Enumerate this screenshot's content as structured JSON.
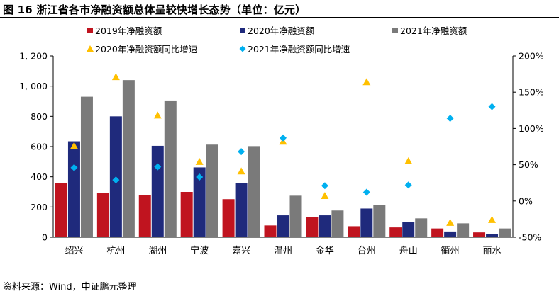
{
  "figure": {
    "title": "图 16 浙江省各市净融资额总体呈较快增长态势（单位：亿元）",
    "source": "资料来源：Wind，中证鹏元整理"
  },
  "chart_data": {
    "type": "bar",
    "categories": [
      "绍兴",
      "杭州",
      "湖州",
      "宁波",
      "嘉兴",
      "温州",
      "金华",
      "台州",
      "舟山",
      "衢州",
      "丽水"
    ],
    "series": [
      {
        "name": "2019年净融资额",
        "kind": "bar",
        "axis": "left",
        "color": "#c0141f",
        "values": [
          360,
          295,
          280,
          300,
          252,
          78,
          135,
          73,
          65,
          58,
          32
        ]
      },
      {
        "name": "2020年净融资额",
        "kind": "bar",
        "axis": "left",
        "color": "#1f2a7c",
        "values": [
          635,
          800,
          605,
          462,
          360,
          145,
          145,
          190,
          102,
          38,
          22
        ]
      },
      {
        "name": "2021年净融资额",
        "kind": "bar",
        "axis": "left",
        "color": "#7a7a7a",
        "values": [
          930,
          1040,
          905,
          613,
          603,
          275,
          177,
          215,
          125,
          92,
          58
        ]
      },
      {
        "name": "2020年净融资额同比增速",
        "kind": "marker",
        "marker": "triangle",
        "axis": "right",
        "color": "#ffc000",
        "values": [
          76,
          171,
          118,
          54,
          41,
          82,
          7,
          164,
          55,
          -30,
          -26
        ]
      },
      {
        "name": "2021年净融资额同比增速",
        "kind": "marker",
        "marker": "diamond",
        "axis": "right",
        "color": "#00b0f0",
        "values": [
          46,
          29,
          47,
          33,
          68,
          87,
          21,
          12,
          22,
          114,
          130
        ]
      }
    ],
    "y_left": {
      "min": 0,
      "max": 1200,
      "step": 200,
      "tick_labels": [
        "0",
        "200",
        "400",
        "600",
        "800",
        "1, 000",
        "1, 200"
      ]
    },
    "y_right": {
      "min": -50,
      "max": 200,
      "step": 50,
      "unit": "%",
      "tick_labels": [
        "-50%",
        "0%",
        "50%",
        "100%",
        "150%",
        "200%"
      ]
    },
    "legend_position": "top",
    "grid": false
  }
}
